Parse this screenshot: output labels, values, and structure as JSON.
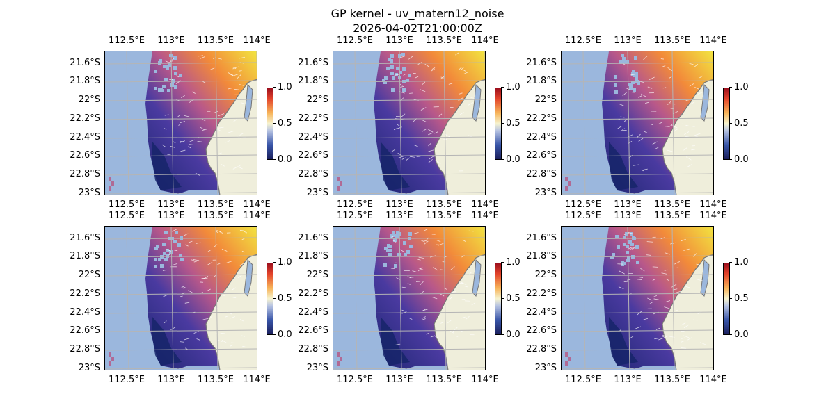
{
  "title": "GP kernel - uv_matern12_noise",
  "subtitle": "2026-04-02T21:00:00Z",
  "lon_labels": [
    "112.5°E",
    "113°E",
    "113.5°E",
    "114°E"
  ],
  "lat_labels": [
    "21.6°S",
    "21.8°S",
    "22°S",
    "22.2°S",
    "22.4°S",
    "22.6°S",
    "22.8°S",
    "23°S"
  ],
  "colorbar_ticks": [
    "0.0",
    "0.5",
    "1.0"
  ],
  "colors": {
    "ocean": "#9bb7dd",
    "land": "#efeedb",
    "grid": "#b5b5b5",
    "field_low": "#1b2a6b",
    "field_mid": "#d8627a",
    "field_high": "#f2e640"
  },
  "panel_count": 6
}
